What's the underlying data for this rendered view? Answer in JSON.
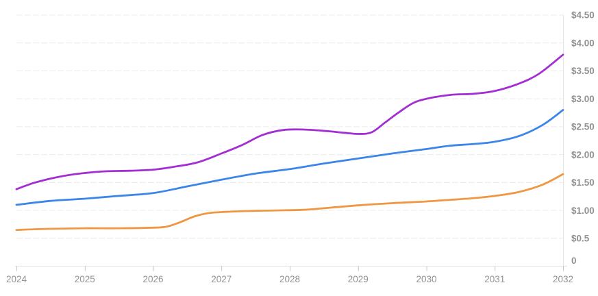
{
  "style": {
    "background": "#ffffff",
    "grid_color": "#ececec",
    "axis_line_color": "#e6e6e6",
    "tick_color": "#c6c6c6",
    "label_color": "#919191"
  },
  "chart_data": {
    "type": "line",
    "title": "",
    "xlabel": "",
    "ylabel": "",
    "x_range": [
      2024,
      2032
    ],
    "y_range": [
      0,
      4.5
    ],
    "grid": {
      "horizontal": true,
      "style": "dashed",
      "vertical": false
    },
    "legend": "none",
    "y_axis_position": "right",
    "y_ticks": {
      "values": [
        4.5,
        4.0,
        3.5,
        3.0,
        2.5,
        2.0,
        1.5,
        1.0,
        0.5,
        0
      ],
      "labels": [
        "$4.50",
        "$4.00",
        "$3.50",
        "$3.00",
        "$2.50",
        "$2.00",
        "$1.50",
        "$1.00",
        "$0.5",
        "0"
      ]
    },
    "x_ticks": {
      "values": [
        2024,
        2025,
        2026,
        2027,
        2028,
        2029,
        2030,
        2031,
        2032
      ],
      "labels": [
        "2024",
        "2025",
        "2026",
        "2027",
        "2028",
        "2029",
        "2030",
        "2031",
        "2032"
      ]
    },
    "series": [
      {
        "name": "orange-series",
        "color": "#ef9743",
        "x": [
          2024,
          2024.5,
          2025,
          2025.5,
          2026,
          2026.2,
          2026.4,
          2026.6,
          2026.8,
          2027,
          2027.4,
          2027.8,
          2028.2,
          2028.6,
          2029,
          2029.5,
          2030,
          2030.35,
          2030.7,
          2031,
          2031.35,
          2031.7,
          2032
        ],
        "values": [
          0.65,
          0.67,
          0.68,
          0.68,
          0.69,
          0.71,
          0.79,
          0.89,
          0.95,
          0.97,
          0.99,
          1.0,
          1.01,
          1.05,
          1.09,
          1.13,
          1.16,
          1.19,
          1.22,
          1.26,
          1.33,
          1.46,
          1.65
        ],
        "annual_values": {
          "2024": 0.65,
          "2025": 0.68,
          "2026": 0.69,
          "2027": 0.97,
          "2028": 1.0,
          "2029": 1.09,
          "2030": 1.16,
          "2031": 1.26,
          "2032": 1.65
        }
      },
      {
        "name": "blue-series",
        "color": "#3b86e8",
        "x": [
          2024,
          2024.5,
          2025,
          2025.5,
          2026,
          2026.5,
          2027,
          2027.5,
          2028,
          2028.5,
          2029,
          2029.5,
          2030,
          2030.35,
          2030.7,
          2031,
          2031.35,
          2031.7,
          2032
        ],
        "values": [
          1.1,
          1.17,
          1.21,
          1.26,
          1.31,
          1.43,
          1.55,
          1.66,
          1.74,
          1.84,
          1.93,
          2.02,
          2.1,
          2.16,
          2.19,
          2.23,
          2.33,
          2.53,
          2.8
        ],
        "annual_values": {
          "2024": 1.1,
          "2025": 1.21,
          "2026": 1.31,
          "2027": 1.55,
          "2028": 1.74,
          "2029": 1.93,
          "2030": 2.1,
          "2031": 2.23,
          "2032": 2.8
        }
      },
      {
        "name": "purple-series",
        "color": "#a32ed2",
        "x": [
          2024,
          2024.25,
          2024.5,
          2024.75,
          2025,
          2025.3,
          2025.65,
          2026,
          2026.3,
          2026.65,
          2027,
          2027.3,
          2027.6,
          2027.9,
          2028.2,
          2028.55,
          2028.8,
          2029,
          2029.2,
          2029.4,
          2029.6,
          2029.8,
          2030,
          2030.35,
          2030.7,
          2031,
          2031.35,
          2031.65,
          2032
        ],
        "values": [
          1.38,
          1.49,
          1.57,
          1.63,
          1.67,
          1.7,
          1.71,
          1.73,
          1.78,
          1.86,
          2.02,
          2.17,
          2.35,
          2.44,
          2.45,
          2.42,
          2.39,
          2.37,
          2.4,
          2.58,
          2.76,
          2.92,
          3.0,
          3.07,
          3.09,
          3.14,
          3.27,
          3.45,
          3.79
        ],
        "annual_values": {
          "2024": 1.38,
          "2025": 1.67,
          "2026": 1.73,
          "2027": 2.02,
          "2028": 2.45,
          "2029": 2.37,
          "2030": 3.0,
          "2031": 3.14,
          "2032": 3.79
        }
      }
    ]
  }
}
